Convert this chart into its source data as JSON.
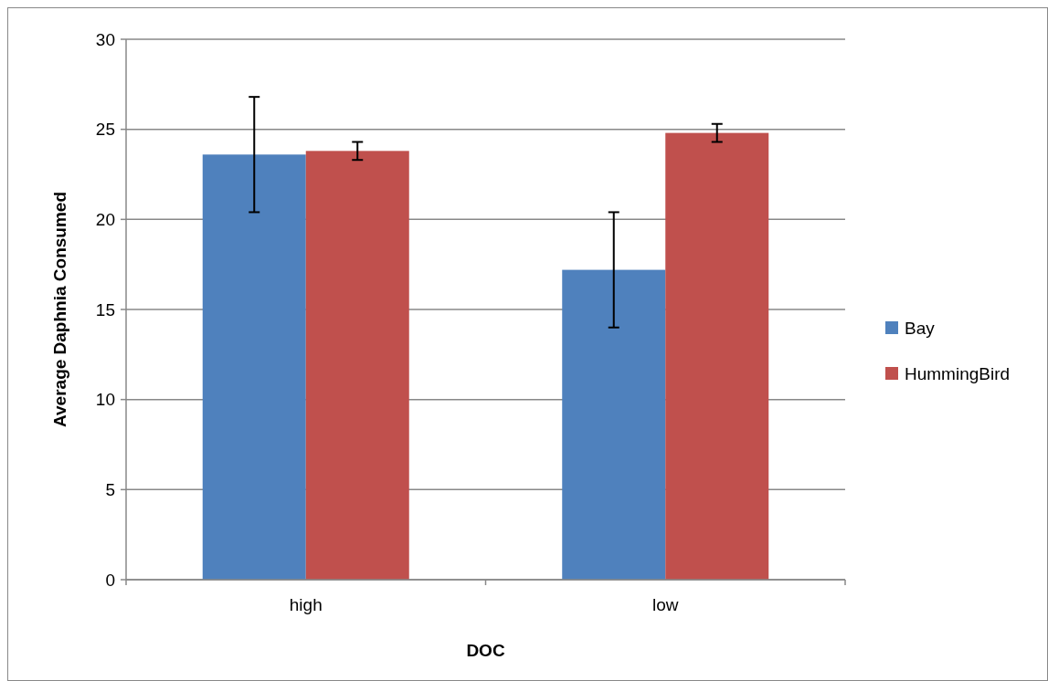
{
  "chart_data": {
    "type": "bar",
    "xlabel": "DOC",
    "ylabel": "Average Daphnia Consumed",
    "categories": [
      "high",
      "low"
    ],
    "series": [
      {
        "name": "Bay",
        "color": "#4f81bd",
        "values": [
          23.6,
          17.2
        ],
        "errors": [
          3.2,
          3.2
        ]
      },
      {
        "name": "HummingBird",
        "color": "#c0504d",
        "values": [
          23.8,
          24.8
        ],
        "errors": [
          0.5,
          0.5
        ]
      }
    ],
    "ylim": [
      0,
      30
    ],
    "yticks": [
      0,
      5,
      10,
      15,
      20,
      25,
      30
    ],
    "grid": "y",
    "legend": "right"
  }
}
